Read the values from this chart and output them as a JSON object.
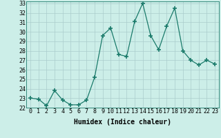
{
  "x": [
    0,
    1,
    2,
    3,
    4,
    5,
    6,
    7,
    8,
    9,
    10,
    11,
    12,
    13,
    14,
    15,
    16,
    17,
    18,
    19,
    20,
    21,
    22,
    23
  ],
  "y": [
    23.0,
    22.9,
    22.2,
    23.8,
    22.8,
    22.3,
    22.3,
    22.8,
    25.2,
    29.6,
    30.4,
    27.6,
    27.4,
    31.1,
    33.0,
    29.6,
    28.1,
    30.6,
    32.5,
    28.0,
    27.0,
    26.5,
    27.0,
    26.6
  ],
  "ylim": [
    22,
    33
  ],
  "yticks": [
    22,
    23,
    24,
    25,
    26,
    27,
    28,
    29,
    30,
    31,
    32,
    33
  ],
  "xticks": [
    0,
    1,
    2,
    3,
    4,
    5,
    6,
    7,
    8,
    9,
    10,
    11,
    12,
    13,
    14,
    15,
    16,
    17,
    18,
    19,
    20,
    21,
    22,
    23
  ],
  "xlabel": "Humidex (Indice chaleur)",
  "line_color": "#1a7a6a",
  "marker": "+",
  "marker_size": 4,
  "bg_color": "#cceee8",
  "grid_color": "#aacccc",
  "tick_fontsize": 6,
  "label_fontsize": 7,
  "xlim_left": -0.5,
  "xlim_right": 23.5
}
